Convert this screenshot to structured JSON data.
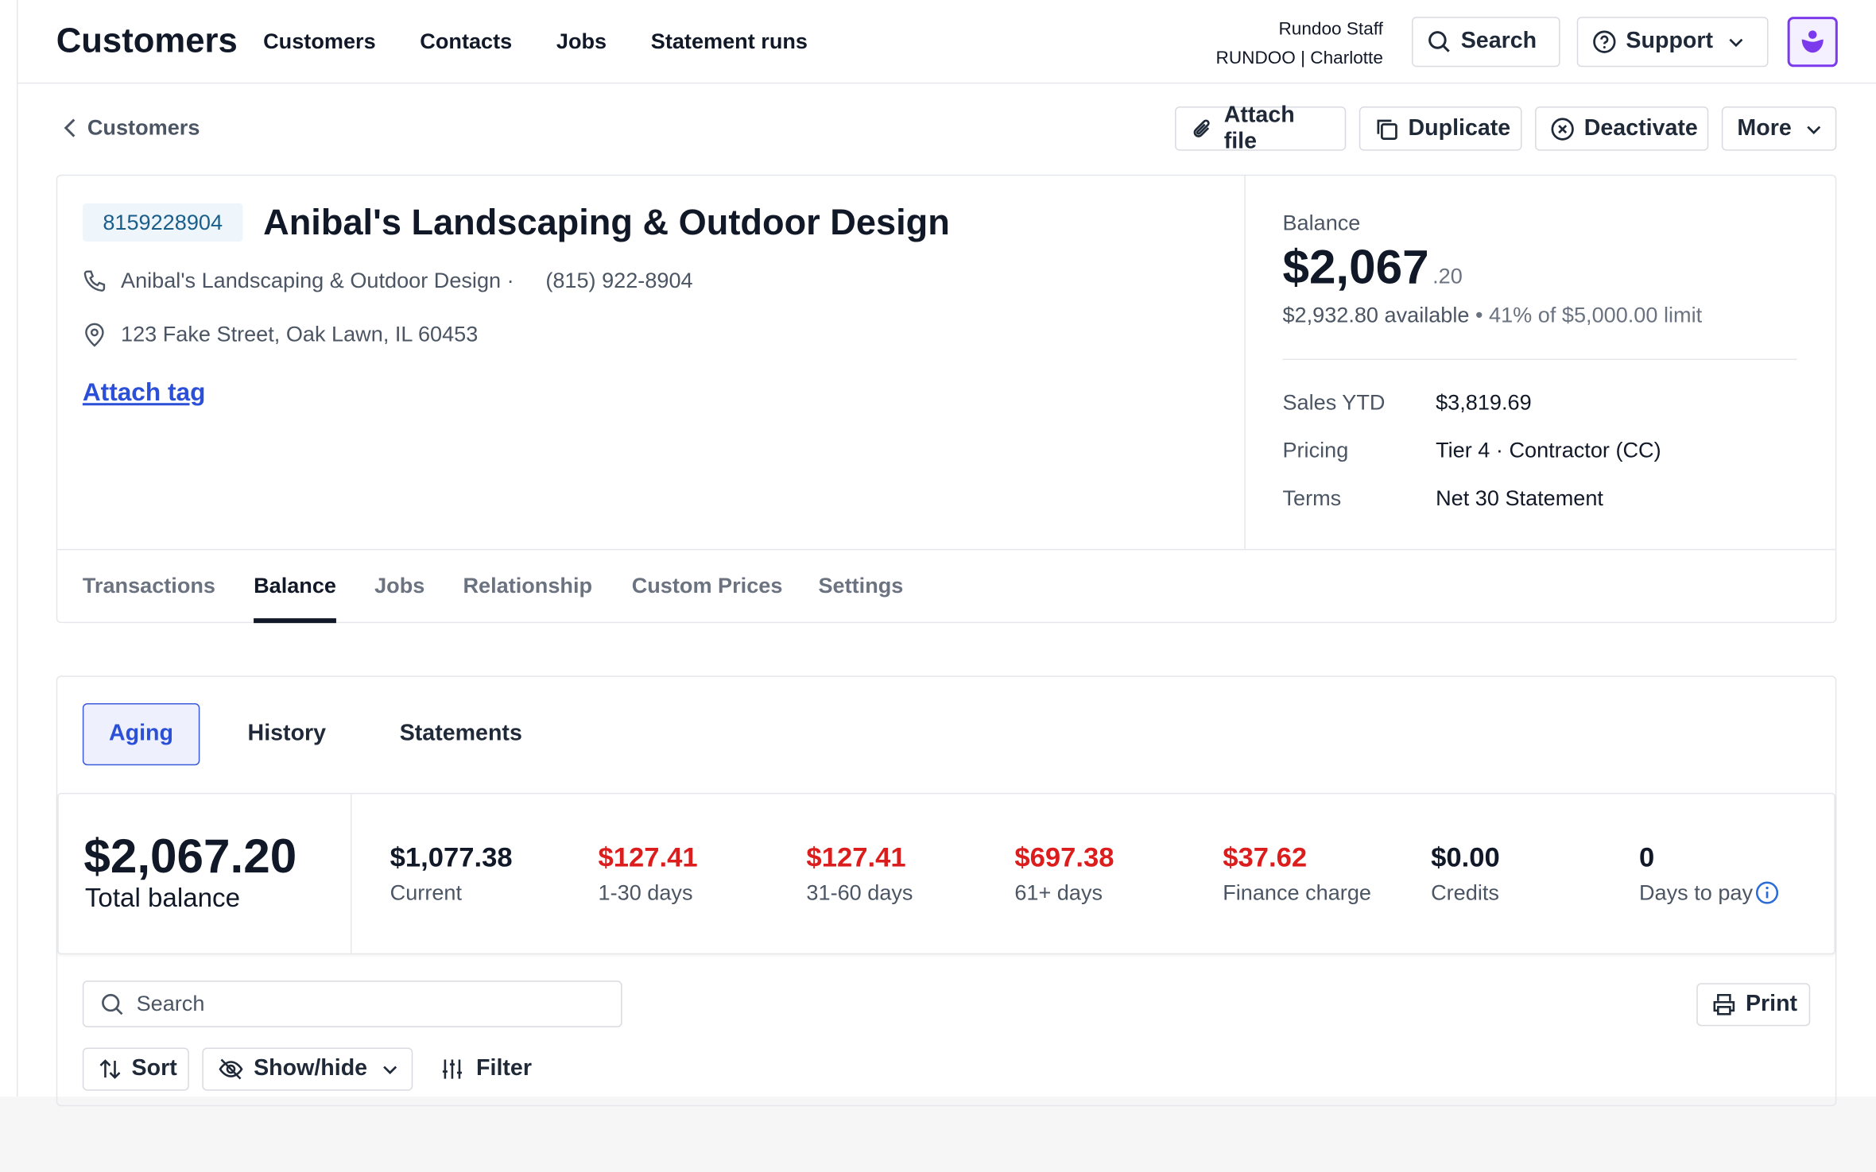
{
  "nav": {
    "title": "Customers",
    "links": [
      "Customers",
      "Contacts",
      "Jobs",
      "Statement runs"
    ],
    "user": "Rundoo Staff",
    "location": "RUNDOO | Charlotte",
    "search": "Search",
    "support": "Support"
  },
  "breadcrumb": "Customers",
  "actions": [
    "Attach file",
    "Duplicate",
    "Deactivate",
    "More"
  ],
  "customer": {
    "id": "8159228904",
    "name": "Anibal's Landscaping & Outdoor Design",
    "contact_name": "Anibal's Landscaping & Outdoor Design ·",
    "phone": "(815) 922-8904",
    "address": "123 Fake Street, Oak Lawn, IL 60453",
    "attach_tag": "Attach tag"
  },
  "balance": {
    "label": "Balance",
    "amount": "$2,067",
    "cents": ".20",
    "available": "$2,932.80 available",
    "limit": "• 41% of $5,000.00 limit",
    "details": [
      {
        "label": "Sales YTD",
        "value": "$3,819.69"
      },
      {
        "label": "Pricing",
        "value": "Tier 4 · Contractor (CC)"
      },
      {
        "label": "Terms",
        "value": "Net 30 Statement"
      }
    ]
  },
  "tabs": [
    "Transactions",
    "Balance",
    "Jobs",
    "Relationship",
    "Custom Prices",
    "Settings"
  ],
  "active_tab": 1,
  "subtabs": [
    "Aging",
    "History",
    "Statements"
  ],
  "active_subtab": 0,
  "aging": {
    "total": "$2,067.20",
    "total_label": "Total balance",
    "buckets": [
      {
        "value": "$1,077.38",
        "label": "Current",
        "overdue": false
      },
      {
        "value": "$127.41",
        "label": "1-30 days",
        "overdue": true
      },
      {
        "value": "$127.41",
        "label": "31-60 days",
        "overdue": true
      },
      {
        "value": "$697.38",
        "label": "61+ days",
        "overdue": true
      },
      {
        "value": "$37.62",
        "label": "Finance charge",
        "overdue": true
      },
      {
        "value": "$0.00",
        "label": "Credits",
        "overdue": false
      },
      {
        "value": "0",
        "label": "Days to pay",
        "overdue": false
      }
    ]
  },
  "toolbar": {
    "search": "Search",
    "print": "Print",
    "sort": "Sort",
    "show_hide": "Show/hide",
    "filter": "Filter"
  }
}
